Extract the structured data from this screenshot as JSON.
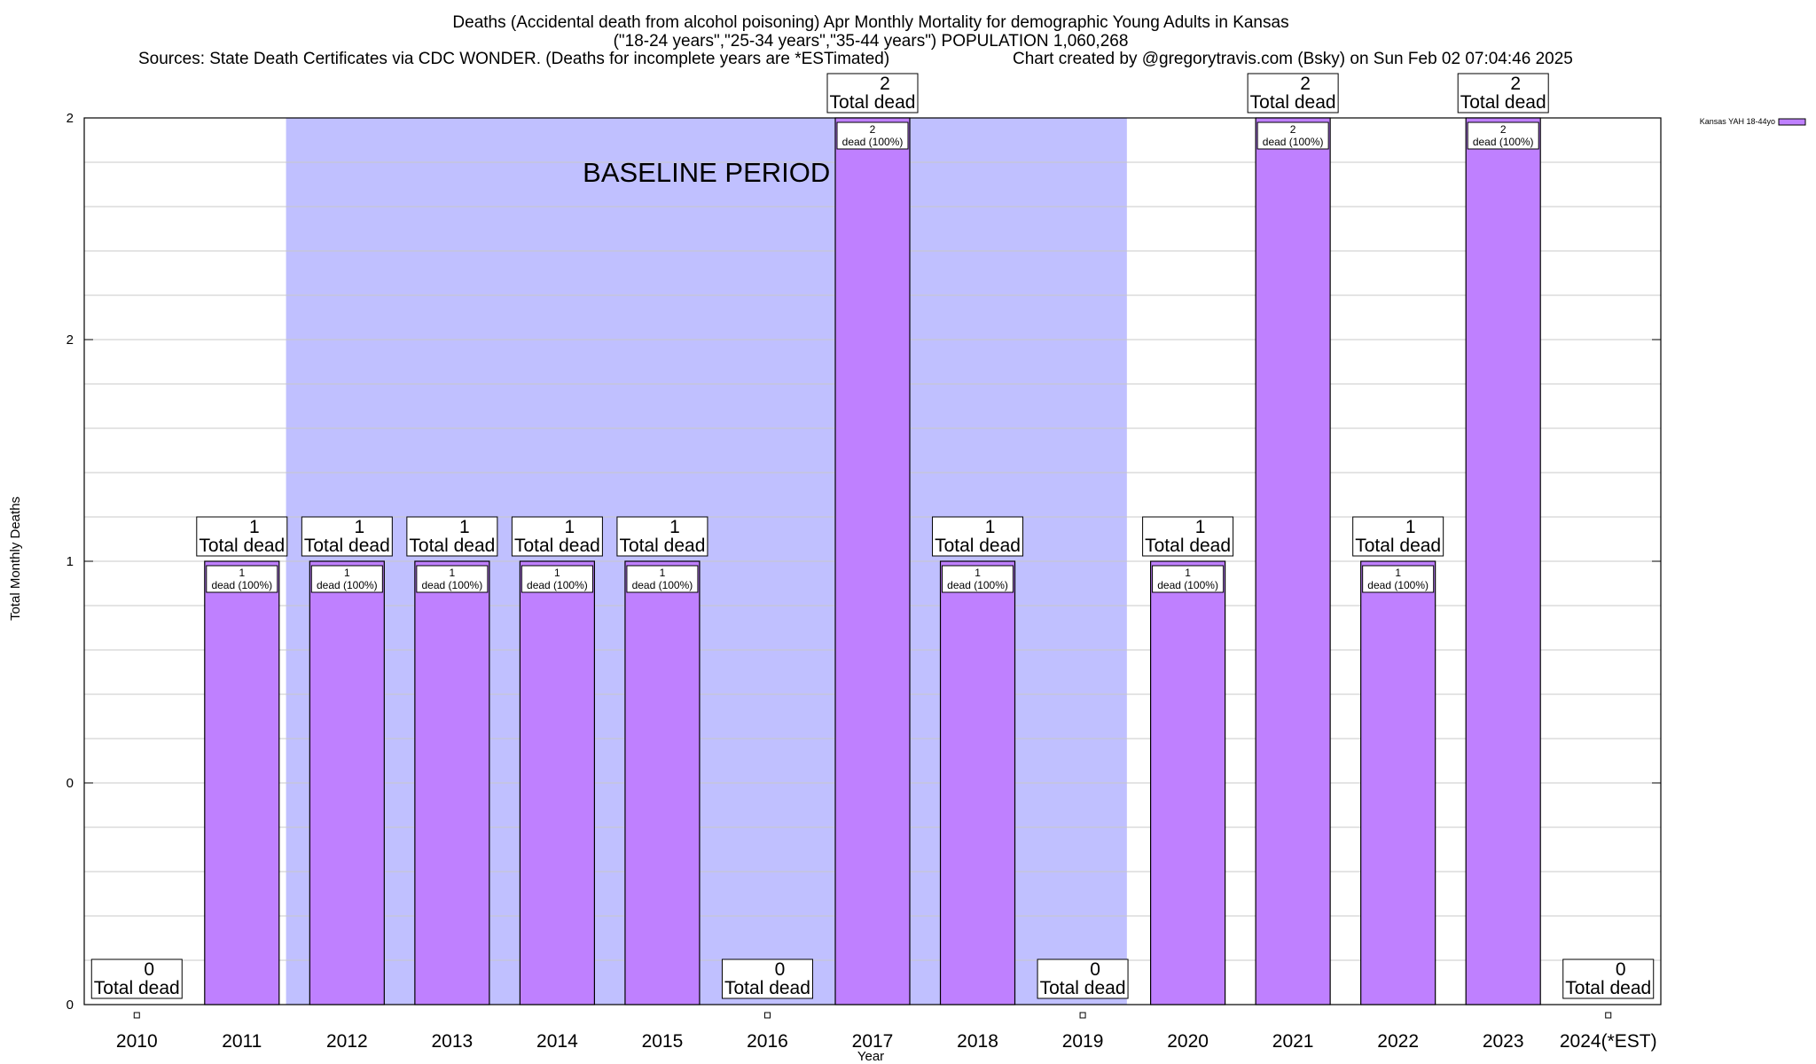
{
  "chart_data": {
    "type": "bar",
    "title_lines": [
      "Deaths (Accidental death from alcohol poisoning) Apr Monthly Mortality for demographic Young Adults in Kansas",
      "(\"18-24 years\",\"25-34 years\",\"35-44 years\") POPULATION 1,060,268"
    ],
    "sources_text": "Sources: State Death Certificates via CDC WONDER. (Deaths for incomplete years are *ESTimated)",
    "credit_text": "Chart created by @gregorytravis.com (Bsky) on Sun Feb 02 07:04:46 2025",
    "xlabel": "Year",
    "ylabel": "Total Monthly Deaths",
    "categories": [
      "2010",
      "2011",
      "2012",
      "2013",
      "2014",
      "2015",
      "2016",
      "2017",
      "2018",
      "2019",
      "2020",
      "2021",
      "2022",
      "2023",
      "2024(*EST)"
    ],
    "series": [
      {
        "name": "Kansas YAH 18-44yo",
        "color": "#bf80ff",
        "values": [
          0,
          1,
          1,
          1,
          1,
          1,
          0,
          2,
          1,
          0,
          1,
          2,
          1,
          2,
          0
        ]
      }
    ],
    "total_labels": [
      "Total dead",
      "Total dead",
      "Total dead",
      "Total dead",
      "Total dead",
      "Total dead",
      "Total dead",
      "Total dead",
      "Total dead",
      "Total dead",
      "Total dead",
      "Total dead",
      "Total dead",
      "Total dead",
      "Total dead"
    ],
    "bar_labels": [
      "",
      "dead (100%)",
      "dead (100%)",
      "dead (100%)",
      "dead (100%)",
      "dead (100%)",
      "",
      "dead (100%)",
      "dead (100%)",
      "",
      "dead (100%)",
      "dead (100%)",
      "dead (100%)",
      "dead (100%)",
      ""
    ],
    "ylim": [
      0,
      2
    ],
    "y_tick_labels": [
      "0",
      "0",
      "1",
      "2",
      "2"
    ],
    "baseline": {
      "label": "BASELINE PERIOD",
      "start": "2012",
      "end": "2019",
      "color": "#c0c0ff"
    },
    "legend": {
      "position": "top-right",
      "label": "Kansas YAH 18-44yo"
    },
    "grid": true
  }
}
